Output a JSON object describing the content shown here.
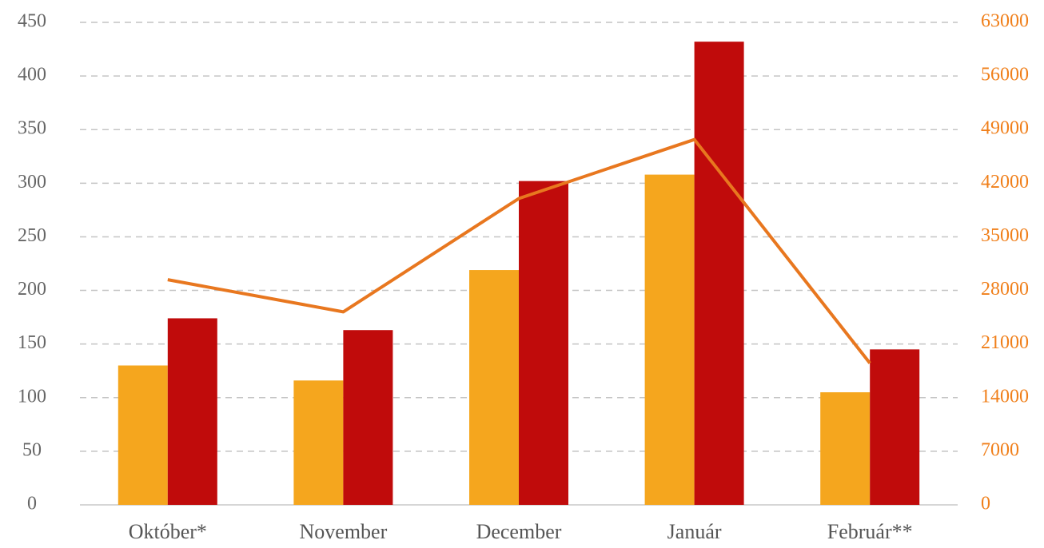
{
  "chart_data": {
    "type": "bar",
    "categories": [
      "Október*",
      "November",
      "December",
      "Január",
      "Február**"
    ],
    "series": [
      {
        "color": "#f5a61e",
        "values": [
          130,
          116,
          219,
          308,
          105
        ]
      },
      {
        "color": "#c00b0b",
        "values": [
          174,
          163,
          302,
          432,
          145
        ]
      },
      {
        "type": "line",
        "axis": "y2",
        "color": "#e8771f",
        "values": [
          29400,
          25200,
          40000,
          47700,
          18500
        ]
      }
    ],
    "ylim": [
      0,
      450
    ],
    "yticks": [
      0,
      50,
      100,
      150,
      200,
      250,
      300,
      350,
      400,
      450
    ],
    "y2lim": [
      0,
      63000
    ],
    "y2ticks": [
      0,
      7000,
      14000,
      21000,
      28000,
      35000,
      42000,
      49000,
      56000,
      63000
    ],
    "grid": true
  }
}
